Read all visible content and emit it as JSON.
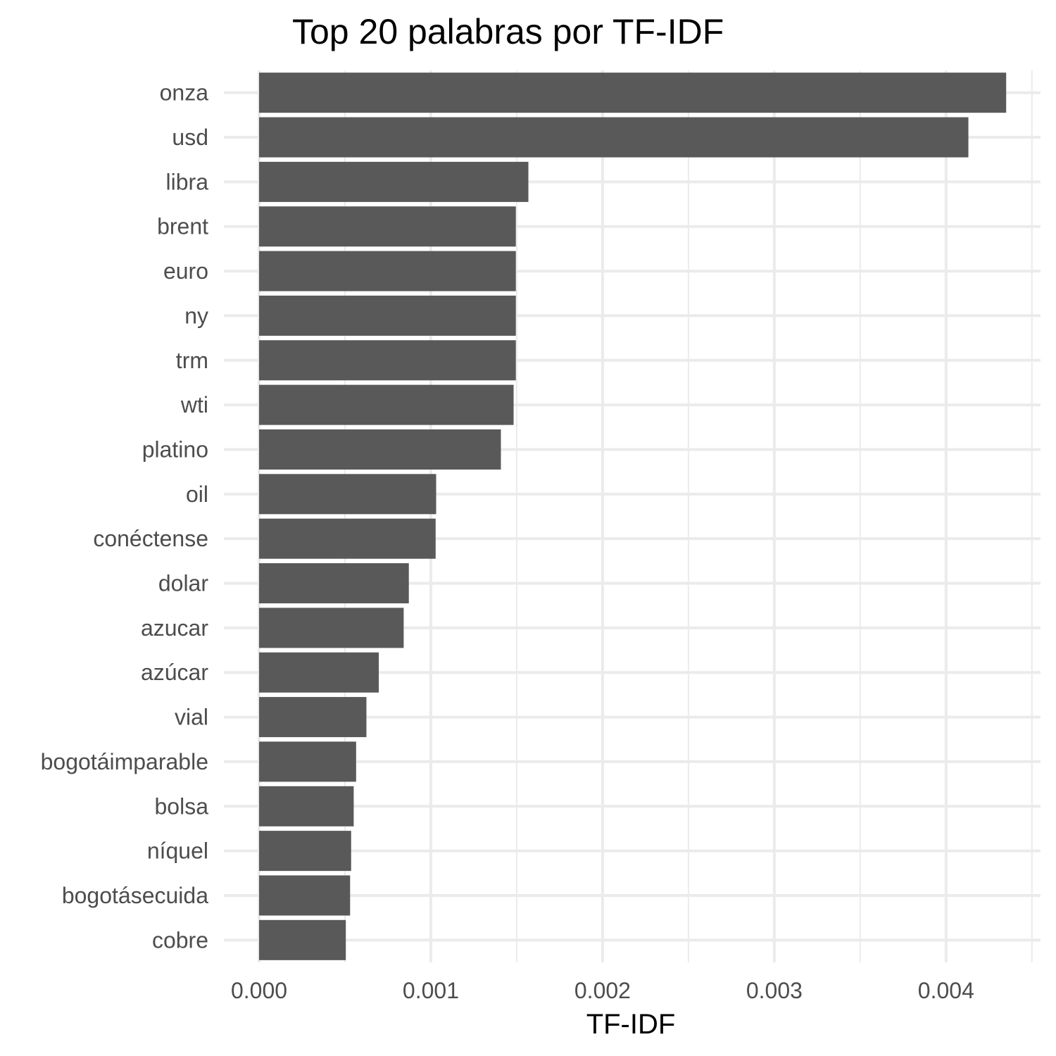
{
  "chart_data": {
    "type": "bar",
    "orientation": "horizontal",
    "title": "Top 20 palabras por TF-IDF",
    "xlabel": "TF-IDF",
    "ylabel": "",
    "categories": [
      "onza",
      "usd",
      "libra",
      "brent",
      "euro",
      "ny",
      "trm",
      "wti",
      "platino",
      "oil",
      "conéctense",
      "dolar",
      "azucar",
      "azúcar",
      "vial",
      "bogotáimparable",
      "bolsa",
      "níquel",
      "bogotásecuida",
      "cobre"
    ],
    "values": [
      0.00435,
      0.00413,
      0.001568,
      0.001495,
      0.001495,
      0.001495,
      0.001495,
      0.001482,
      0.001408,
      0.001031,
      0.001028,
      0.000872,
      0.000842,
      0.000697,
      0.000625,
      0.000565,
      0.000551,
      0.000536,
      0.00053,
      0.000505
    ],
    "xlim": [
      -0.000205,
      0.00455
    ],
    "xticks": [
      0,
      0.001,
      0.002,
      0.003,
      0.004
    ],
    "xtick_labels": [
      "0.000",
      "0.001",
      "0.002",
      "0.003",
      "0.004"
    ],
    "grid": true,
    "legend": "none",
    "colors": {
      "bar": "#595959",
      "grid": "#ebebeb",
      "background": "#ffffff"
    }
  }
}
